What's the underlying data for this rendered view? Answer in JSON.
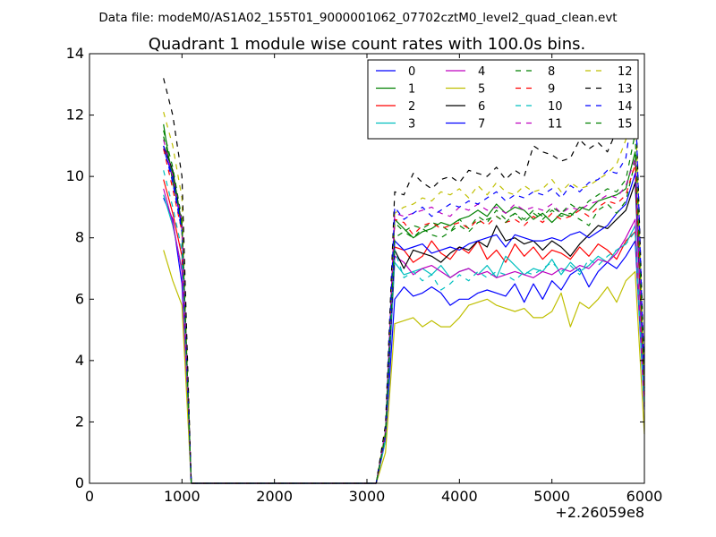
{
  "figure": {
    "suptitle": "Data file: modeM0/AS1A02_155T01_9000001062_07702cztM0_level2_quad_clean.evt"
  },
  "chart_data": {
    "type": "line",
    "title": "Quadrant 1 module wise count rates with 100.0s bins.",
    "xlabel": "",
    "ylabel": "",
    "x_offset_label": "+2.26059e8",
    "xlim": [
      0,
      6000
    ],
    "ylim": [
      0,
      14
    ],
    "x_ticks": [
      0,
      1000,
      2000,
      3000,
      4000,
      5000,
      6000
    ],
    "y_ticks": [
      0,
      2,
      4,
      6,
      8,
      10,
      12,
      14
    ],
    "grid": false,
    "legend": {
      "position": "top-right",
      "columns": 4
    },
    "x": [
      800,
      900,
      1000,
      1100,
      3100,
      3200,
      3300,
      3400,
      3500,
      3600,
      3700,
      3800,
      3900,
      4000,
      4100,
      4200,
      4300,
      4400,
      4500,
      4600,
      4700,
      4800,
      4900,
      5000,
      5100,
      5200,
      5300,
      5400,
      5500,
      5600,
      5700,
      5800,
      5900,
      6000
    ],
    "series": [
      {
        "name": "0",
        "color": "#0000ff",
        "dash": "solid",
        "values": [
          9.3,
          8.6,
          6.5,
          0,
          0,
          1.4,
          6.0,
          6.4,
          6.1,
          6.2,
          6.4,
          6.2,
          5.8,
          6.0,
          6.0,
          6.2,
          6.3,
          6.2,
          6.1,
          6.5,
          5.9,
          6.5,
          6.0,
          6.6,
          6.3,
          6.8,
          7.0,
          6.4,
          6.9,
          7.2,
          7.0,
          7.4,
          7.9,
          2.4
        ]
      },
      {
        "name": "1",
        "color": "#008000",
        "dash": "solid",
        "values": [
          11.7,
          9.8,
          8.5,
          0,
          0,
          1.6,
          8.6,
          8.3,
          8.0,
          8.2,
          8.3,
          8.5,
          8.4,
          8.6,
          8.7,
          8.9,
          8.7,
          9.1,
          8.8,
          9.0,
          8.9,
          8.6,
          8.8,
          8.5,
          8.8,
          8.7,
          9.0,
          8.9,
          9.2,
          9.3,
          9.4,
          9.6,
          10.8,
          3.1
        ]
      },
      {
        "name": "2",
        "color": "#ff0000",
        "dash": "solid",
        "values": [
          9.9,
          8.8,
          7.4,
          0,
          0,
          1.5,
          7.7,
          7.6,
          7.2,
          7.4,
          7.9,
          7.5,
          7.3,
          7.7,
          7.5,
          7.9,
          7.3,
          7.6,
          7.2,
          7.8,
          7.4,
          7.7,
          7.3,
          7.6,
          7.5,
          7.3,
          7.7,
          7.4,
          7.8,
          7.6,
          7.3,
          7.9,
          8.2,
          2.6
        ]
      },
      {
        "name": "3",
        "color": "#00bfbf",
        "dash": "solid",
        "values": [
          9.4,
          8.4,
          7.0,
          0,
          0,
          1.4,
          7.2,
          6.8,
          6.9,
          7.0,
          6.8,
          7.1,
          6.7,
          6.9,
          7.0,
          6.8,
          7.1,
          6.7,
          7.4,
          7.1,
          6.8,
          7.0,
          6.9,
          7.3,
          6.8,
          7.2,
          6.9,
          7.1,
          7.4,
          7.2,
          7.6,
          7.8,
          8.4,
          2.5
        ]
      },
      {
        "name": "4",
        "color": "#bf00bf",
        "dash": "solid",
        "values": [
          9.6,
          8.5,
          6.9,
          0,
          0,
          1.5,
          7.4,
          7.2,
          6.8,
          7.0,
          7.1,
          6.9,
          6.7,
          6.9,
          7.0,
          6.8,
          6.9,
          6.7,
          6.8,
          6.9,
          6.8,
          6.7,
          6.9,
          6.8,
          7.0,
          6.9,
          7.1,
          7.0,
          7.3,
          7.2,
          7.5,
          8.0,
          8.6,
          2.5
        ]
      },
      {
        "name": "5",
        "color": "#bfbf00",
        "dash": "solid",
        "values": [
          7.6,
          6.6,
          5.8,
          0,
          0,
          1.0,
          5.2,
          5.3,
          5.4,
          5.1,
          5.3,
          5.1,
          5.1,
          5.4,
          5.8,
          5.9,
          6.0,
          5.8,
          5.7,
          5.6,
          5.7,
          5.4,
          5.4,
          5.6,
          6.2,
          5.1,
          5.9,
          5.7,
          6.0,
          6.4,
          5.9,
          6.6,
          6.9,
          1.6
        ]
      },
      {
        "name": "6",
        "color": "#000000",
        "dash": "solid",
        "values": [
          11.0,
          10.2,
          8.4,
          0,
          0,
          1.6,
          7.6,
          7.0,
          7.6,
          7.5,
          7.4,
          7.2,
          7.5,
          7.7,
          7.6,
          7.9,
          7.7,
          8.4,
          7.9,
          8.0,
          7.8,
          7.9,
          7.6,
          7.9,
          7.7,
          7.4,
          7.8,
          8.1,
          8.4,
          8.3,
          8.6,
          8.9,
          9.8,
          3.1
        ]
      },
      {
        "name": "7",
        "color": "#0000ff",
        "dash": "solid",
        "values": [
          10.9,
          10.0,
          8.3,
          0,
          0,
          1.6,
          7.9,
          7.6,
          7.7,
          7.8,
          7.5,
          7.6,
          7.7,
          7.6,
          7.8,
          7.9,
          8.0,
          8.1,
          7.7,
          8.1,
          8.0,
          7.9,
          7.9,
          8.0,
          7.9,
          8.1,
          8.2,
          8.0,
          8.2,
          8.4,
          8.8,
          9.1,
          10.1,
          3.0
        ]
      },
      {
        "name": "8",
        "color": "#008000",
        "dash": "dashed",
        "values": [
          11.5,
          10.3,
          8.6,
          0,
          0,
          1.7,
          8.5,
          8.2,
          8.4,
          8.3,
          8.5,
          8.4,
          8.2,
          8.6,
          8.3,
          8.7,
          8.5,
          8.9,
          8.6,
          8.8,
          8.5,
          8.8,
          8.6,
          8.9,
          8.7,
          8.8,
          8.6,
          8.4,
          8.9,
          9.1,
          8.8,
          9.2,
          10.5,
          3.0
        ]
      },
      {
        "name": "9",
        "color": "#ff0000",
        "dash": "dashed",
        "values": [
          10.9,
          9.6,
          8.2,
          0,
          0,
          1.6,
          8.6,
          8.5,
          8.1,
          8.4,
          8.5,
          8.3,
          8.4,
          8.5,
          8.3,
          8.6,
          8.4,
          8.7,
          8.5,
          8.6,
          8.4,
          8.7,
          8.5,
          8.8,
          8.6,
          8.7,
          8.9,
          8.7,
          9.0,
          9.2,
          9.1,
          9.4,
          10.4,
          2.9
        ]
      },
      {
        "name": "10",
        "color": "#00bfbf",
        "dash": "dashed",
        "values": [
          10.2,
          9.0,
          7.6,
          0,
          0,
          1.5,
          7.6,
          6.7,
          6.9,
          6.6,
          6.8,
          6.3,
          6.5,
          6.8,
          6.6,
          6.9,
          6.7,
          6.9,
          6.8,
          6.6,
          6.9,
          6.8,
          7.0,
          7.2,
          6.9,
          7.1,
          6.8,
          7.3,
          7.1,
          7.4,
          7.6,
          7.8,
          8.2,
          2.5
        ]
      },
      {
        "name": "11",
        "color": "#bf00bf",
        "dash": "dashed",
        "values": [
          11.2,
          10.0,
          8.5,
          0,
          0,
          1.7,
          8.8,
          8.7,
          8.8,
          8.9,
          9.0,
          8.8,
          8.7,
          9.0,
          8.9,
          9.1,
          8.9,
          9.0,
          8.8,
          9.1,
          8.9,
          9.0,
          8.9,
          9.1,
          8.8,
          9.0,
          8.9,
          9.1,
          9.2,
          9.4,
          9.3,
          9.7,
          10.6,
          3.0
        ]
      },
      {
        "name": "12",
        "color": "#bfbf00",
        "dash": "dashed",
        "values": [
          12.1,
          11.0,
          9.3,
          0,
          0,
          1.8,
          8.8,
          9.0,
          9.1,
          9.3,
          9.2,
          9.5,
          9.4,
          9.6,
          9.3,
          9.7,
          9.4,
          9.8,
          9.5,
          9.4,
          9.7,
          9.5,
          9.6,
          9.9,
          9.5,
          9.8,
          9.6,
          9.7,
          9.9,
          10.1,
          10.4,
          11.2,
          12.4,
          3.2
        ]
      },
      {
        "name": "13",
        "color": "#000000",
        "dash": "dashed",
        "values": [
          13.2,
          12.0,
          10.0,
          0,
          0,
          1.9,
          9.5,
          9.4,
          10.1,
          9.8,
          9.6,
          9.9,
          10.0,
          9.8,
          10.2,
          10.1,
          10.0,
          10.3,
          9.9,
          10.2,
          10.0,
          11.0,
          10.8,
          10.7,
          10.5,
          10.6,
          11.2,
          10.9,
          11.1,
          10.8,
          11.5,
          11.8,
          12.9,
          3.5
        ]
      },
      {
        "name": "14",
        "color": "#0000ff",
        "dash": "dashed",
        "values": [
          11.0,
          9.8,
          8.2,
          0,
          0,
          1.6,
          9.0,
          8.6,
          8.8,
          9.0,
          8.7,
          8.9,
          9.1,
          9.0,
          9.2,
          9.1,
          9.3,
          9.5,
          9.2,
          9.4,
          9.3,
          9.5,
          9.4,
          9.6,
          9.3,
          9.7,
          9.5,
          9.8,
          9.9,
          10.2,
          10.1,
          10.6,
          12.8,
          3.2
        ]
      },
      {
        "name": "15",
        "color": "#008000",
        "dash": "dashed",
        "values": [
          11.3,
          10.1,
          8.4,
          0,
          0,
          1.6,
          8.0,
          8.2,
          8.0,
          8.3,
          8.1,
          8.0,
          8.2,
          8.4,
          8.2,
          8.5,
          8.6,
          8.7,
          8.5,
          8.8,
          8.6,
          8.9,
          8.7,
          9.0,
          8.8,
          9.1,
          8.9,
          9.2,
          9.4,
          9.6,
          9.5,
          9.9,
          11.4,
          3.1
        ]
      }
    ]
  }
}
